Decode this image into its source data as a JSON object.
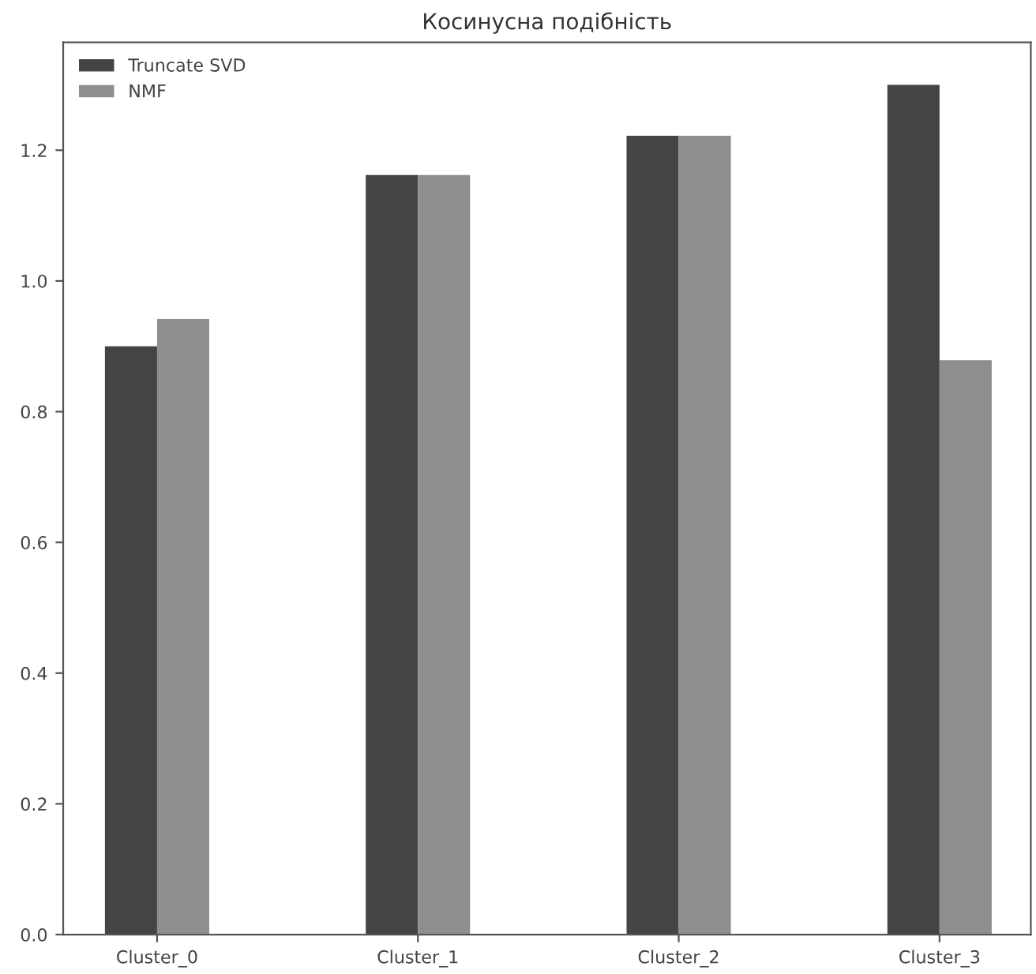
{
  "chart_data": {
    "type": "bar",
    "title": "Косинусна подібність",
    "categories": [
      "Cluster_0",
      "Cluster_1",
      "Cluster_2",
      "Cluster_3"
    ],
    "series": [
      {
        "name": "Truncate SVD",
        "color": "#444444",
        "values": [
          0.9,
          1.162,
          1.222,
          1.3
        ]
      },
      {
        "name": "NMF",
        "color": "#8e8e8e",
        "values": [
          0.942,
          1.162,
          1.222,
          0.879
        ]
      }
    ],
    "ylim": [
      0,
      1.365
    ],
    "yticks": [
      {
        "value": 0,
        "label": "0.0"
      },
      {
        "value": 0.2,
        "label": "0.2"
      },
      {
        "value": 0.4,
        "label": "0.4"
      },
      {
        "value": 0.6,
        "label": "0.6"
      },
      {
        "value": 0.8,
        "label": "0.8"
      },
      {
        "value": 1.0,
        "label": "1.0"
      },
      {
        "value": 1.2,
        "label": "1.2"
      }
    ],
    "legend": "top left",
    "grid": false
  }
}
